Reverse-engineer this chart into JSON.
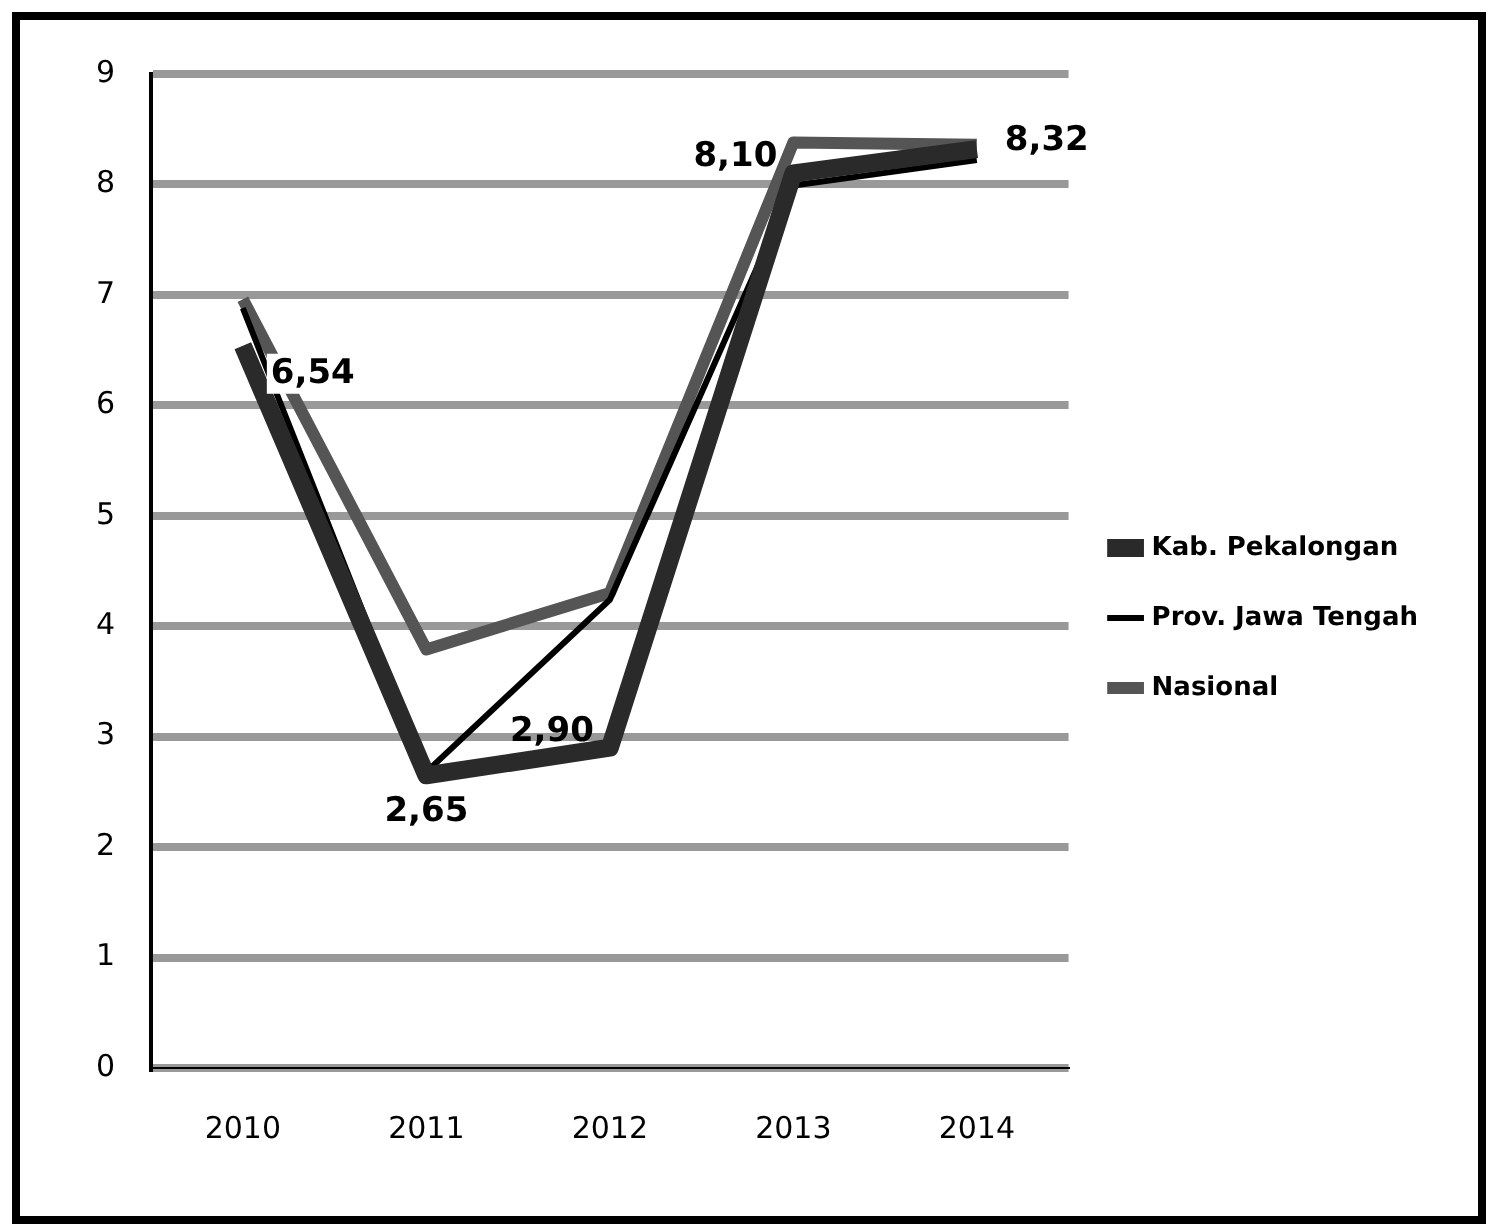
{
  "chart_data": {
    "type": "line",
    "categories": [
      "2010",
      "2011",
      "2012",
      "2013",
      "2014"
    ],
    "series": [
      {
        "name": "Kab. Pekalongan",
        "color": "#2a2a2a",
        "values": [
          6.54,
          2.65,
          2.9,
          8.1,
          8.32
        ],
        "value_labels": [
          "6,54",
          "2,65",
          "2,90",
          "8,10",
          "8,32"
        ]
      },
      {
        "name": "Prov. Jawa Tengah",
        "color": "#000000",
        "values": [
          6.88,
          2.68,
          4.24,
          7.99,
          8.22
        ]
      },
      {
        "name": "Nasional",
        "color": "#555555",
        "values": [
          6.96,
          3.79,
          4.3,
          8.38,
          8.36
        ]
      }
    ],
    "ylim": [
      0,
      9
    ],
    "yticks": [
      0,
      1,
      2,
      3,
      4,
      5,
      6,
      7,
      8,
      9
    ],
    "grid": "y",
    "legend": "right",
    "marker": "none",
    "line_style": "solid"
  }
}
